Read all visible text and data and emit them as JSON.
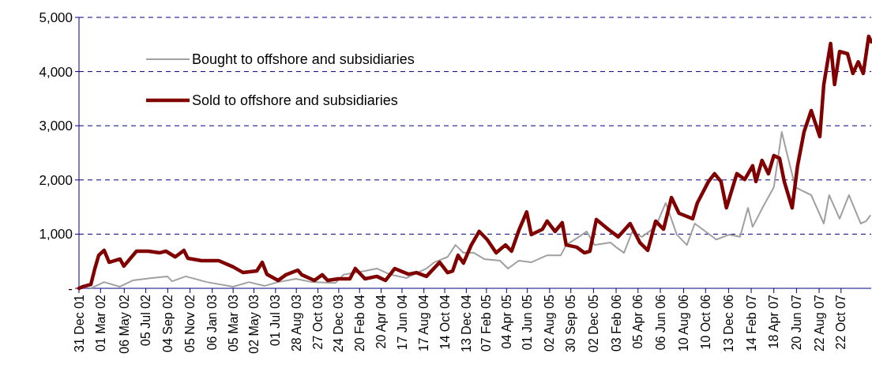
{
  "chart_data": {
    "type": "line",
    "legend": "top left",
    "grid": "y",
    "ylim": [
      0,
      5000
    ],
    "yticks": [
      {
        "value": 0,
        "label": "-"
      },
      {
        "value": 1000,
        "label": "1,000"
      },
      {
        "value": 2000,
        "label": "2,000"
      },
      {
        "value": 3000,
        "label": "3,000"
      },
      {
        "value": 4000,
        "label": "4,000"
      },
      {
        "value": 5000,
        "label": "5,000"
      }
    ],
    "xlim": [
      "2001-12-31",
      "2008-01-14"
    ],
    "xticks": [
      {
        "value": "2001-12-31",
        "label": "31 Dec 01"
      },
      {
        "value": "2002-03-01",
        "label": "01 Mar 02"
      },
      {
        "value": "2002-05-06",
        "label": "06 May 02"
      },
      {
        "value": "2002-07-05",
        "label": "05 Jul 02"
      },
      {
        "value": "2002-09-04",
        "label": "04 Sep 02"
      },
      {
        "value": "2002-11-05",
        "label": "05 Nov 02"
      },
      {
        "value": "2003-01-06",
        "label": "06 Jan 03"
      },
      {
        "value": "2003-03-05",
        "label": "05 Mar 03"
      },
      {
        "value": "2003-05-02",
        "label": "02 May 03"
      },
      {
        "value": "2003-07-01",
        "label": "01 Jul 03"
      },
      {
        "value": "2003-08-28",
        "label": "28 Aug 03"
      },
      {
        "value": "2003-10-27",
        "label": "27 Oct 03"
      },
      {
        "value": "2003-12-24",
        "label": "24 Dec 03"
      },
      {
        "value": "2004-02-20",
        "label": "20 Feb 04"
      },
      {
        "value": "2004-04-20",
        "label": "20 Apr 04"
      },
      {
        "value": "2004-06-17",
        "label": "17 Jun 04"
      },
      {
        "value": "2004-08-17",
        "label": "17 Aug 04"
      },
      {
        "value": "2004-10-14",
        "label": "14 Oct 04"
      },
      {
        "value": "2004-12-13",
        "label": "13 Dec 04"
      },
      {
        "value": "2005-02-07",
        "label": "07 Feb 05"
      },
      {
        "value": "2005-04-04",
        "label": "04 Apr 05"
      },
      {
        "value": "2005-06-01",
        "label": "01 Jun 05"
      },
      {
        "value": "2005-08-02",
        "label": "02 Aug 05"
      },
      {
        "value": "2005-09-30",
        "label": "30 Sep 05"
      },
      {
        "value": "2005-12-02",
        "label": "02 Dec 05"
      },
      {
        "value": "2006-02-03",
        "label": "03 Feb 06"
      },
      {
        "value": "2006-04-05",
        "label": "05 Apr 06"
      },
      {
        "value": "2006-06-06",
        "label": "06 Jun 06"
      },
      {
        "value": "2006-08-10",
        "label": "10 Aug 06"
      },
      {
        "value": "2006-10-10",
        "label": "10 Oct 06"
      },
      {
        "value": "2006-12-13",
        "label": "13 Dec 06"
      },
      {
        "value": "2007-02-14",
        "label": "14 Feb 07"
      },
      {
        "value": "2007-04-18",
        "label": "18 Apr 07"
      },
      {
        "value": "2007-06-20",
        "label": "20 Jun 07"
      },
      {
        "value": "2007-08-22",
        "label": "22 Aug 07"
      },
      {
        "value": "2007-10-22",
        "label": "22 Oct 07"
      }
    ],
    "series": [
      {
        "name": "Bought to offshore and subsidiaries",
        "color": "#a0a0a0",
        "x": [
          "2002-02-02",
          "2002-03-11",
          "2002-04-24",
          "2002-05-29",
          "2002-07-21",
          "2002-09-03",
          "2002-09-16",
          "2002-10-24",
          "2002-12-22",
          "2003-03-05",
          "2003-04-18",
          "2003-06-01",
          "2003-07-08",
          "2003-08-27",
          "2003-10-10",
          "2003-12-15",
          "2004-01-06",
          "2004-03-06",
          "2004-04-08",
          "2004-05-13",
          "2004-06-30",
          "2004-08-24",
          "2004-09-15",
          "2004-10-22",
          "2004-11-13",
          "2004-12-05",
          "2005-01-03",
          "2005-02-01",
          "2005-03-17",
          "2005-04-08",
          "2005-05-08",
          "2005-06-12",
          "2005-07-26",
          "2005-09-02",
          "2005-09-17",
          "2005-10-22",
          "2005-11-13",
          "2005-12-05",
          "2006-01-18",
          "2006-02-03",
          "2006-02-25",
          "2006-03-19",
          "2006-04-16",
          "2006-05-24",
          "2006-06-21",
          "2006-07-22",
          "2006-08-19",
          "2006-09-10",
          "2006-11-09",
          "2006-12-14",
          "2007-01-14",
          "2007-02-05",
          "2007-02-18",
          "2007-03-21",
          "2007-04-18",
          "2007-05-10",
          "2007-05-26",
          "2007-06-17",
          "2007-07-31",
          "2007-09-04",
          "2007-09-19",
          "2007-10-18",
          "2007-11-13",
          "2007-12-16",
          "2007-12-31",
          "2008-01-11"
        ],
        "values": [
          0,
          115,
          30,
          145,
          190,
          220,
          130,
          220,
          115,
          30,
          115,
          45,
          115,
          175,
          115,
          100,
          250,
          320,
          365,
          260,
          190,
          365,
          480,
          580,
          800,
          655,
          655,
          540,
          510,
          365,
          510,
          480,
          610,
          610,
          800,
          950,
          1050,
          800,
          845,
          760,
          655,
          1035,
          950,
          1135,
          1575,
          990,
          800,
          1195,
          900,
          990,
          950,
          1485,
          1135,
          1530,
          1865,
          2885,
          2450,
          1865,
          1720,
          1195,
          1720,
          1285,
          1720,
          1195,
          1240,
          1340
        ]
      },
      {
        "name": "Sold to offshore and subsidiaries",
        "color": "#800000",
        "x": [
          "2001-12-31",
          "2002-01-11",
          "2002-02-02",
          "2002-02-13",
          "2002-02-24",
          "2002-03-11",
          "2002-03-25",
          "2002-04-24",
          "2002-05-05",
          "2002-06-09",
          "2002-07-12",
          "2002-08-12",
          "2002-08-30",
          "2002-09-25",
          "2002-10-19",
          "2002-10-30",
          "2002-12-07",
          "2003-01-24",
          "2003-03-05",
          "2003-04-02",
          "2003-05-10",
          "2003-05-25",
          "2003-06-07",
          "2003-07-08",
          "2003-07-30",
          "2003-09-01",
          "2003-09-12",
          "2003-10-17",
          "2003-11-08",
          "2003-11-23",
          "2003-12-22",
          "2004-01-24",
          "2004-02-08",
          "2004-03-06",
          "2004-04-08",
          "2004-05-02",
          "2004-05-28",
          "2004-07-05",
          "2004-07-27",
          "2004-08-24",
          "2004-09-30",
          "2004-10-22",
          "2004-11-05",
          "2004-11-20",
          "2004-12-05",
          "2004-12-27",
          "2005-01-18",
          "2005-02-09",
          "2005-03-06",
          "2005-04-01",
          "2005-04-18",
          "2005-05-08",
          "2005-05-30",
          "2005-06-12",
          "2005-07-13",
          "2005-07-26",
          "2005-08-17",
          "2005-09-06",
          "2005-09-17",
          "2005-10-16",
          "2005-11-07",
          "2005-11-22",
          "2005-12-10",
          "2006-01-12",
          "2006-02-09",
          "2006-03-14",
          "2006-04-10",
          "2006-05-02",
          "2006-05-24",
          "2006-06-15",
          "2006-07-07",
          "2006-07-28",
          "2006-09-04",
          "2006-09-17",
          "2006-10-18",
          "2006-11-04",
          "2006-11-22",
          "2006-12-07",
          "2007-01-05",
          "2007-01-27",
          "2007-02-18",
          "2007-02-27",
          "2007-03-16",
          "2007-04-03",
          "2007-04-18",
          "2007-05-04",
          "2007-05-17",
          "2007-06-08",
          "2007-06-23",
          "2007-07-11",
          "2007-07-31",
          "2007-08-24",
          "2007-09-04",
          "2007-09-23",
          "2007-10-04",
          "2007-10-18",
          "2007-11-09",
          "2007-11-24",
          "2007-12-09",
          "2007-12-23",
          "2008-01-07",
          "2008-01-14"
        ],
        "values": [
          0,
          30,
          70,
          360,
          610,
          700,
          480,
          540,
          410,
          685,
          685,
          655,
          685,
          580,
          700,
          555,
          510,
          510,
          395,
          290,
          320,
          480,
          260,
          145,
          250,
          335,
          250,
          145,
          250,
          145,
          175,
          175,
          365,
          175,
          220,
          145,
          365,
          260,
          290,
          220,
          480,
          290,
          320,
          610,
          465,
          800,
          1050,
          900,
          655,
          800,
          685,
          1065,
          1410,
          990,
          1090,
          1240,
          1050,
          1210,
          800,
          760,
          655,
          685,
          1270,
          1090,
          950,
          1195,
          845,
          700,
          1240,
          1090,
          1675,
          1385,
          1285,
          1575,
          1970,
          2115,
          1970,
          1485,
          2115,
          2010,
          2260,
          1970,
          2360,
          2115,
          2450,
          2400,
          1970,
          1485,
          2260,
          2885,
          3280,
          2800,
          3760,
          4520,
          3760,
          4370,
          4330,
          3965,
          4180,
          3965,
          4650,
          4550
        ]
      }
    ]
  }
}
